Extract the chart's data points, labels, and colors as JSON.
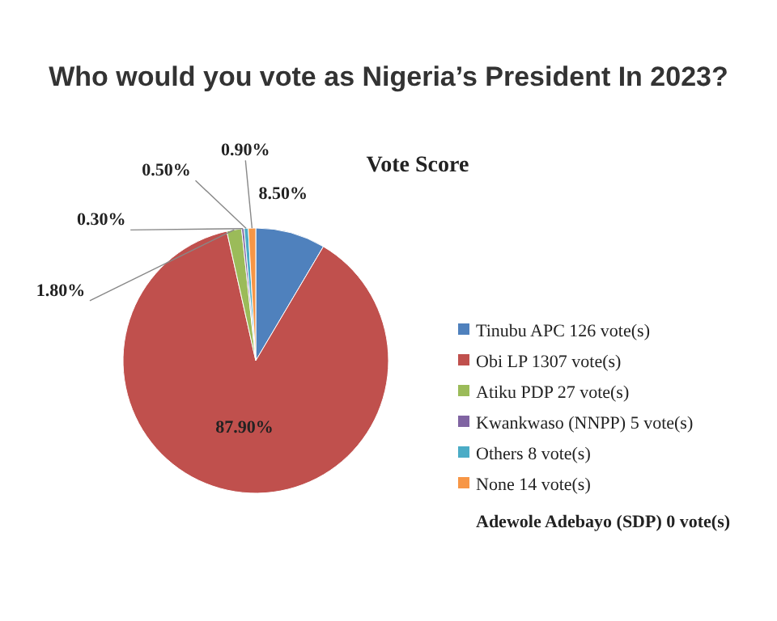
{
  "chart_data": {
    "type": "pie",
    "title": "Who would you vote as Nigeria’s President In 2023?",
    "subtitle": "Vote Score",
    "categories": [
      "Tinubu APC 126 vote(s)",
      "Obi LP 1307 vote(s)",
      "Atiku PDP 27 vote(s)",
      "Kwankwaso (NNPP) 5 vote(s)",
      "Others 8 vote(s)",
      "None 14 vote(s)"
    ],
    "values": [
      8.5,
      87.9,
      1.8,
      0.3,
      0.5,
      0.9
    ],
    "value_labels": [
      "8.50%",
      "87.90%",
      "1.80%",
      "0.30%",
      "0.50%",
      "0.90%"
    ],
    "colors": [
      "#4f81bd",
      "#c0504d",
      "#9bbb59",
      "#8064a2",
      "#4bacc6",
      "#f79646"
    ],
    "legend": "right",
    "annotations": [
      "Adewole Adebayo (SDP) 0 vote(s)"
    ]
  }
}
